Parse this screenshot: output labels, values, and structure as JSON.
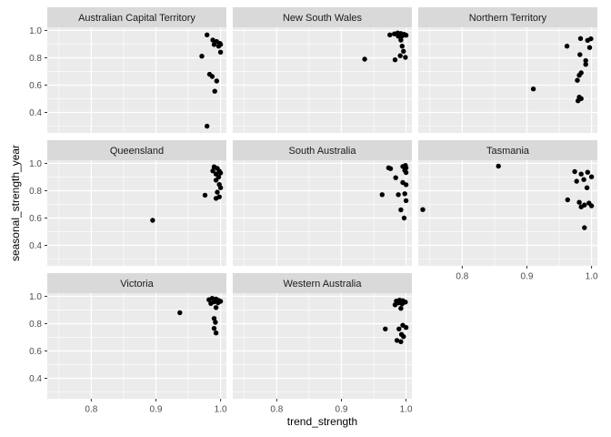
{
  "figure": {
    "xlabel": "trend_strength",
    "ylabel": "seasonal_strength_year"
  },
  "chart_data": {
    "type": "scatter",
    "faceted_by": "State",
    "xlabel": "trend_strength",
    "ylabel": "seasonal_strength_year",
    "xlim": [
      0.732,
      1.009
    ],
    "ylim": [
      0.25,
      1.023
    ],
    "x_ticks": [
      0.8,
      0.9,
      1.0
    ],
    "x_tick_labels": [
      "0.8",
      "0.9",
      "1.0"
    ],
    "y_ticks": [
      0.4,
      0.6,
      0.8,
      1.0
    ],
    "y_tick_labels": [
      "0.4",
      "0.6",
      "0.8",
      "1.0"
    ],
    "x_minor_ticks": [
      0.75,
      0.85,
      0.95
    ],
    "y_minor_ticks": [
      0.3,
      0.5,
      0.7,
      0.9
    ],
    "grid": true,
    "legend": "none",
    "style": {
      "panel_bg": "#EBEBEB",
      "strip_bg": "#D9D9D9",
      "grid_color": "#FFFFFF",
      "point_color": "#000000",
      "tick_mark_color": "#333333",
      "tick_label_color": "#4D4D4D",
      "strip_text_color": "#1A1A1A",
      "axis_title_color": "#000000"
    },
    "facets": [
      {
        "name": "Australian Capital Territory",
        "points": [
          [
            0.979,
            0.968
          ],
          [
            0.988,
            0.93
          ],
          [
            0.994,
            0.919
          ],
          [
            0.999,
            0.905
          ],
          [
            0.99,
            0.897
          ],
          [
            0.997,
            0.885
          ],
          [
            1.0,
            0.897
          ],
          [
            1.0,
            0.841
          ],
          [
            0.971,
            0.812
          ],
          [
            0.983,
            0.679
          ],
          [
            0.987,
            0.663
          ],
          [
            0.994,
            0.63
          ],
          [
            0.991,
            0.555
          ],
          [
            0.979,
            0.299
          ]
        ]
      },
      {
        "name": "New South Wales",
        "points": [
          [
            0.975,
            0.968
          ],
          [
            0.982,
            0.975
          ],
          [
            0.987,
            0.982
          ],
          [
            0.992,
            0.978
          ],
          [
            0.997,
            0.972
          ],
          [
            1.0,
            0.965
          ],
          [
            0.994,
            0.96
          ],
          [
            0.988,
            0.958
          ],
          [
            0.992,
            0.93
          ],
          [
            0.994,
            0.885
          ],
          [
            0.996,
            0.848
          ],
          [
            0.991,
            0.815
          ],
          [
            0.999,
            0.803
          ],
          [
            0.983,
            0.785
          ],
          [
            0.936,
            0.79
          ]
        ]
      },
      {
        "name": "Northern Territory",
        "points": [
          [
            0.983,
            0.941
          ],
          [
            0.994,
            0.928
          ],
          [
            0.999,
            0.939
          ],
          [
            0.962,
            0.885
          ],
          [
            0.997,
            0.875
          ],
          [
            0.982,
            0.823
          ],
          [
            0.991,
            0.779
          ],
          [
            0.991,
            0.752
          ],
          [
            0.984,
            0.69
          ],
          [
            0.981,
            0.672
          ],
          [
            0.978,
            0.635
          ],
          [
            0.91,
            0.572
          ],
          [
            0.981,
            0.512
          ],
          [
            0.984,
            0.501
          ],
          [
            0.979,
            0.485
          ]
        ]
      },
      {
        "name": "Queensland",
        "points": [
          [
            0.99,
            0.975
          ],
          [
            0.995,
            0.963
          ],
          [
            0.988,
            0.945
          ],
          [
            0.998,
            0.943
          ],
          [
            1.0,
            0.93
          ],
          [
            0.993,
            0.922
          ],
          [
            0.997,
            0.9
          ],
          [
            0.993,
            0.877
          ],
          [
            0.998,
            0.845
          ],
          [
            1.0,
            0.822
          ],
          [
            0.995,
            0.789
          ],
          [
            0.976,
            0.767
          ],
          [
            0.998,
            0.755
          ],
          [
            0.993,
            0.744
          ],
          [
            0.895,
            0.583
          ]
        ]
      },
      {
        "name": "South Australia",
        "points": [
          [
            0.973,
            0.968
          ],
          [
            0.976,
            0.962
          ],
          [
            0.995,
            0.977
          ],
          [
            0.999,
            0.985
          ],
          [
            1.0,
            0.967
          ],
          [
            0.998,
            0.949
          ],
          [
            1.0,
            0.933
          ],
          [
            0.984,
            0.895
          ],
          [
            0.995,
            0.86
          ],
          [
            1.0,
            0.844
          ],
          [
            0.998,
            0.778
          ],
          [
            0.988,
            0.771
          ],
          [
            0.963,
            0.771
          ],
          [
            1.0,
            0.727
          ],
          [
            0.992,
            0.66
          ],
          [
            0.997,
            0.6
          ]
        ]
      },
      {
        "name": "Tasmania",
        "points": [
          [
            0.739,
            0.662
          ],
          [
            0.856,
            0.98
          ],
          [
            0.974,
            0.94
          ],
          [
            0.984,
            0.922
          ],
          [
            0.994,
            0.935
          ],
          [
            1.0,
            0.902
          ],
          [
            0.988,
            0.882
          ],
          [
            0.977,
            0.869
          ],
          [
            0.993,
            0.822
          ],
          [
            0.963,
            0.733
          ],
          [
            0.981,
            0.715
          ],
          [
            0.989,
            0.695
          ],
          [
            0.996,
            0.709
          ],
          [
            1.0,
            0.689
          ],
          [
            0.984,
            0.682
          ],
          [
            0.989,
            0.529
          ]
        ]
      },
      {
        "name": "Victoria",
        "points": [
          [
            0.982,
            0.975
          ],
          [
            0.987,
            0.985
          ],
          [
            0.993,
            0.98
          ],
          [
            0.997,
            0.97
          ],
          [
            1.0,
            0.963
          ],
          [
            0.99,
            0.96
          ],
          [
            0.996,
            0.953
          ],
          [
            0.985,
            0.948
          ],
          [
            0.993,
            0.918
          ],
          [
            0.937,
            0.88
          ],
          [
            0.99,
            0.838
          ],
          [
            0.992,
            0.81
          ],
          [
            0.99,
            0.765
          ],
          [
            0.993,
            0.732
          ]
        ]
      },
      {
        "name": "Western Australia",
        "points": [
          [
            0.985,
            0.965
          ],
          [
            0.99,
            0.972
          ],
          [
            0.995,
            0.968
          ],
          [
            0.999,
            0.958
          ],
          [
            0.988,
            0.952
          ],
          [
            0.994,
            0.945
          ],
          [
            0.983,
            0.938
          ],
          [
            0.992,
            0.912
          ],
          [
            0.995,
            0.788
          ],
          [
            1.0,
            0.772
          ],
          [
            0.989,
            0.761
          ],
          [
            0.968,
            0.761
          ],
          [
            0.993,
            0.721
          ],
          [
            0.996,
            0.705
          ],
          [
            0.986,
            0.677
          ],
          [
            0.992,
            0.668
          ]
        ]
      }
    ]
  }
}
